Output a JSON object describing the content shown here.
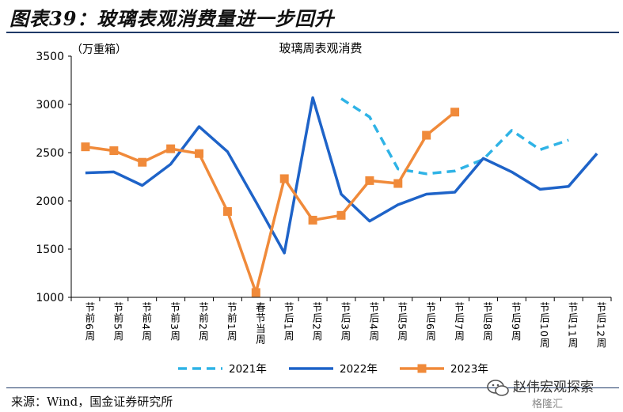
{
  "figure": {
    "title": "图表39：玻璃表观消费量进一步回升",
    "source": "来源：Wind，国金证券研究所"
  },
  "watermark": {
    "text": "赵伟宏观探索",
    "text2": "格隆汇"
  },
  "chart_data": {
    "type": "line",
    "title": "玻璃周表观消费",
    "ylabel": "（万重箱）",
    "xlabel": "",
    "ylim": [
      1000,
      3500
    ],
    "yticks": [
      1000,
      1500,
      2000,
      2500,
      3000,
      3500
    ],
    "grid": false,
    "legend_position": "bottom",
    "categories": [
      "节前6周",
      "节前5周",
      "节前4周",
      "节前3周",
      "节前2周",
      "节前1周",
      "春节当周",
      "节后1周",
      "节后2周",
      "节后3周",
      "节后4周",
      "节后5周",
      "节后6周",
      "节后7周",
      "节后8周",
      "节后9周",
      "节后10周",
      "节后11周",
      "节后12周"
    ],
    "series": [
      {
        "name": "2021年",
        "color": "#2fb3e6",
        "dashed": true,
        "marker": "none",
        "values": [
          null,
          null,
          null,
          null,
          null,
          null,
          null,
          null,
          null,
          3060,
          2870,
          2330,
          2280,
          2310,
          2430,
          2730,
          2530,
          2630,
          null
        ]
      },
      {
        "name": "2022年",
        "color": "#1e63c8",
        "dashed": false,
        "marker": "none",
        "values": [
          2290,
          2300,
          2160,
          2380,
          2770,
          2510,
          1990,
          1460,
          3070,
          2070,
          1790,
          1960,
          2070,
          2090,
          2440,
          2300,
          2120,
          2150,
          2490
        ]
      },
      {
        "name": "2023年",
        "color": "#f08a3a",
        "dashed": false,
        "marker": "square",
        "values": [
          2560,
          2520,
          2400,
          2540,
          2490,
          1890,
          1050,
          2230,
          1800,
          1850,
          2210,
          2180,
          2680,
          2920,
          null,
          null,
          null,
          null,
          null
        ]
      }
    ]
  }
}
